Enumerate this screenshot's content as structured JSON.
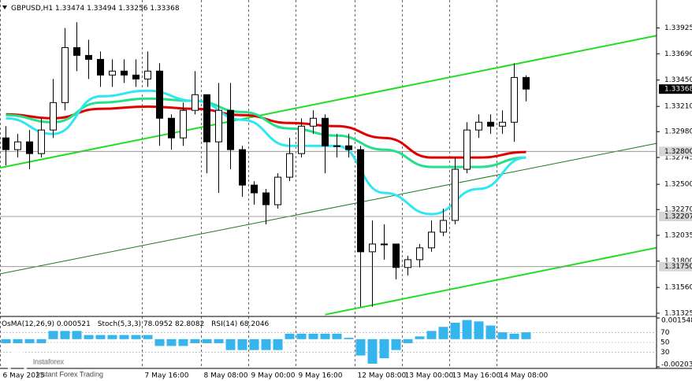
{
  "chart_data": {
    "type": "candlestick",
    "title": "GBPUSD,H1",
    "categories": [
      "6 May 2025",
      null,
      null,
      null,
      null,
      null,
      null,
      null,
      null,
      null,
      null,
      null,
      "7 May 16:00",
      null,
      null,
      null,
      null,
      "8 May 08:00",
      null,
      null,
      null,
      "9 May 00:00",
      null,
      null,
      null,
      "9 May 16:00",
      null,
      null,
      null,
      null,
      "12 May 08:00",
      null,
      null,
      null,
      "13 May 00:00",
      null,
      null,
      null,
      "13 May 16:00",
      null,
      null,
      null,
      "14 May 08:00",
      null,
      null
    ],
    "ohlc": [
      [
        1.32923,
        1.3303,
        1.32672,
        1.32816
      ],
      [
        1.32816,
        1.32959,
        1.32744,
        1.32887
      ],
      [
        1.32887,
        1.32995,
        1.32637,
        1.3278
      ],
      [
        1.3278,
        1.33102,
        1.32744,
        1.32995
      ],
      [
        1.32995,
        1.3346,
        1.32923,
        1.33245
      ],
      [
        1.33245,
        1.33925,
        1.33174,
        1.33746
      ],
      [
        1.33746,
        1.33976,
        1.33532,
        1.33675
      ],
      [
        1.33675,
        1.33818,
        1.3346,
        1.33639
      ],
      [
        1.33639,
        1.33711,
        1.33388,
        1.33496
      ],
      [
        1.33496,
        1.33639,
        1.33388,
        1.33532
      ],
      [
        1.33532,
        1.33639,
        1.33424,
        1.33496
      ],
      [
        1.33496,
        1.33639,
        1.33388,
        1.3346
      ],
      [
        1.3346,
        1.33711,
        1.33388,
        1.33532
      ],
      [
        1.33532,
        1.33603,
        1.32851,
        1.33102
      ],
      [
        1.33102,
        1.33138,
        1.32816,
        1.32923
      ],
      [
        1.32923,
        1.33245,
        1.32851,
        1.33174
      ],
      [
        1.33174,
        1.33532,
        1.33138,
        1.33317
      ],
      [
        1.33317,
        1.33317,
        1.32601,
        1.32887
      ],
      [
        1.32887,
        1.33424,
        1.32422,
        1.33174
      ],
      [
        1.33174,
        1.33424,
        1.32637,
        1.32816
      ],
      [
        1.32816,
        1.32851,
        1.32386,
        1.32493
      ],
      [
        1.32493,
        1.32529,
        1.32314,
        1.32422
      ],
      [
        1.32422,
        1.32458,
        1.32135,
        1.32314
      ],
      [
        1.32314,
        1.32601,
        1.32279,
        1.32565
      ],
      [
        1.32565,
        1.32923,
        1.32529,
        1.3278
      ],
      [
        1.3278,
        1.33102,
        1.32744,
        1.3303
      ],
      [
        1.3303,
        1.33174,
        1.32959,
        1.33102
      ],
      [
        1.33102,
        1.33138,
        1.32601,
        1.32851
      ],
      [
        1.32851,
        1.32959,
        1.32744,
        1.32851
      ],
      [
        1.32851,
        1.32959,
        1.32744,
        1.32816
      ],
      [
        1.32816,
        1.32851,
        1.31384,
        1.31885
      ],
      [
        1.31885,
        1.32171,
        1.31384,
        1.31956
      ],
      [
        1.31956,
        1.32135,
        1.31813,
        1.31956
      ],
      [
        1.31956,
        1.31956,
        1.31634,
        1.31742
      ],
      [
        1.31742,
        1.31849,
        1.3167,
        1.31813
      ],
      [
        1.31813,
        1.31956,
        1.31742,
        1.31921
      ],
      [
        1.31921,
        1.32171,
        1.31885,
        1.32064
      ],
      [
        1.32064,
        1.32279,
        1.32028,
        1.32171
      ],
      [
        1.32171,
        1.32744,
        1.32135,
        1.32637
      ],
      [
        1.32637,
        1.33066,
        1.32601,
        1.32995
      ],
      [
        1.32995,
        1.33138,
        1.32923,
        1.33066
      ],
      [
        1.33066,
        1.33138,
        1.32959,
        1.3303
      ],
      [
        1.3303,
        1.33174,
        1.32959,
        1.33066
      ],
      [
        1.33066,
        1.33603,
        1.32887,
        1.33474
      ],
      [
        1.33474,
        1.33494,
        1.33256,
        1.33368
      ]
    ],
    "candle_colors": {
      "up": "#ffffff",
      "down": "#000000",
      "outline": "#000000"
    },
    "ylim": [
      1.3131,
      1.3418
    ],
    "yticks": [
      1.33925,
      {
        "value": 1.3369,
        "label": "1.33690"
      },
      {
        "value": 1.3345,
        "label": "1.33450"
      },
      {
        "value": 1.3321,
        "label": "1.33210"
      },
      {
        "value": 1.3298,
        "label": "1.32980"
      },
      1.32745,
      {
        "value": 1.325,
        "label": "1.32500"
      },
      {
        "value": 1.3227,
        "label": "1.32270"
      },
      1.32035,
      {
        "value": 1.318,
        "label": "1.31800"
      },
      {
        "value": 1.3156,
        "label": "1.31560"
      },
      1.31325
    ],
    "grid": true,
    "moving_averages": [
      {
        "color": "#e00000",
        "x": [
          0,
          4,
          8,
          12,
          16,
          20,
          24,
          28,
          32,
          36,
          40,
          44
        ],
        "values": [
          1.33138,
          1.33102,
          1.33188,
          1.33209,
          1.33188,
          1.33131,
          1.33059,
          1.3303,
          1.32923,
          1.32744,
          1.32744,
          1.32794
        ]
      },
      {
        "color": "#25e08a",
        "x": [
          0,
          4,
          8,
          12,
          16,
          20,
          24,
          28,
          32,
          36,
          40,
          44
        ],
        "values": [
          1.33131,
          1.33066,
          1.33245,
          1.33281,
          1.3326,
          1.33159,
          1.33009,
          1.32944,
          1.32816,
          1.32658,
          1.32658,
          1.32744
        ]
      },
      {
        "color": "#30e6f2",
        "x": [
          0,
          4,
          8,
          12,
          16,
          20,
          24,
          28,
          32,
          36,
          40,
          44
        ],
        "values": [
          1.33102,
          1.32959,
          1.33302,
          1.33353,
          1.3326,
          1.33088,
          1.32851,
          1.32851,
          1.32422,
          1.32228,
          1.32458,
          1.32744
        ]
      }
    ],
    "trendlines": [
      {
        "color": "#22dd22",
        "x": [
          -0.5,
          55
        ],
        "values": [
          1.32651,
          1.33854
        ]
      },
      {
        "color": "#22dd22",
        "x": [
          27,
          55
        ],
        "values": [
          1.31312,
          1.31921
        ]
      },
      {
        "color": "#1a7a1a",
        "x": [
          -0.5,
          55
        ],
        "values": [
          1.31684,
          1.32873
        ]
      }
    ],
    "levels": [
      {
        "value": 1.328,
        "label": "1.32800"
      },
      1.32207,
      {
        "value": 1.3175,
        "label": "1.31750"
      }
    ],
    "oscillator": {
      "type": "bar",
      "header": [
        "OsMA(12,26,9) 0.000521",
        "Stoch(5,3,3) 78.0952 82.8082",
        "RSI(14) 68.2046"
      ],
      "color": "#33b5ef",
      "ylim": [
        -0.002031,
        0.001548
      ],
      "yticks": [
        0.001548,
        -0.002031
      ],
      "stoch_levels": [
        70,
        50,
        30
      ],
      "values": [
        -0.0003,
        -0.0003,
        -0.0003,
        -0.0003,
        0.0006,
        0.0006,
        0.0006,
        0.0003,
        0.0003,
        0.0003,
        0.0003,
        0.0003,
        0.0003,
        -0.0005,
        -0.0005,
        -0.0005,
        -0.0003,
        -0.0003,
        -0.0003,
        -0.0008,
        -0.0008,
        -0.0008,
        -0.0008,
        -0.0008,
        0.0004,
        0.0004,
        0.0004,
        0.0004,
        0.0004,
        0.0001,
        -0.0012,
        -0.0018,
        -0.0014,
        -0.0008,
        -0.0003,
        0.0002,
        0.0006,
        0.0009,
        0.0012,
        0.0014,
        0.0013,
        0.001,
        0.0005,
        0.0004,
        0.0005
      ]
    },
    "watermark": {
      "brand": "instaforex",
      "tagline": "Instant Forex Trading"
    }
  }
}
